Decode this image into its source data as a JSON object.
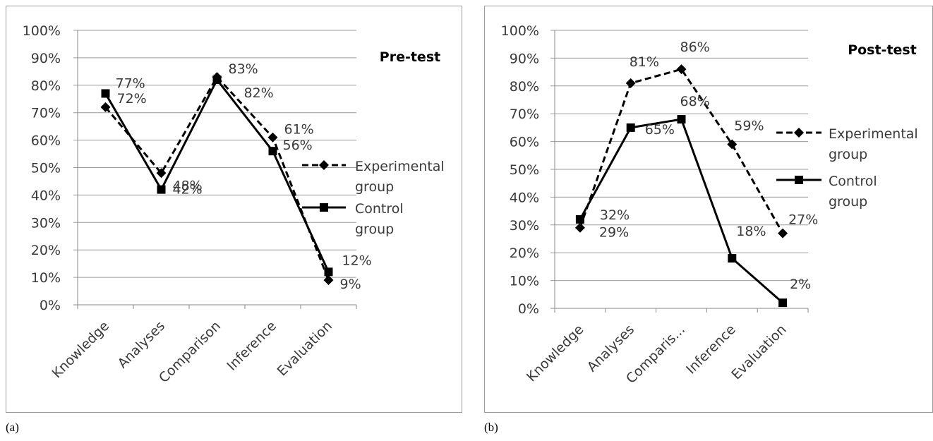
{
  "captions": [
    "(a)",
    "(b)"
  ],
  "chart_data": [
    {
      "type": "line",
      "title": "Pre-test",
      "categories": [
        "Knowledge",
        "Analyses",
        "Comparison",
        "Inference",
        "Evaluation"
      ],
      "y_ticks": [
        "0%",
        "10%",
        "20%",
        "30%",
        "40%",
        "50%",
        "60%",
        "70%",
        "80%",
        "90%",
        "100%"
      ],
      "ylim": [
        0,
        100
      ],
      "grid": true,
      "legend": "right",
      "series": [
        {
          "name_lines": [
            "Experimental",
            "group"
          ],
          "values": [
            72,
            48,
            83,
            61,
            9
          ],
          "labels": [
            "72%",
            "48%",
            "83%",
            "61%",
            "9%"
          ],
          "style": "dashed",
          "marker": "diamond",
          "color": "#000000"
        },
        {
          "name_lines": [
            "Control",
            "group"
          ],
          "values": [
            77,
            42,
            82,
            56,
            12
          ],
          "labels": [
            "77%",
            "42%",
            "82%",
            "56%",
            "12%"
          ],
          "style": "solid",
          "marker": "square",
          "color": "#000000"
        }
      ]
    },
    {
      "type": "line",
      "title": "Post-test",
      "categories": [
        "Knowledge",
        "Analyses",
        "Comparis...",
        "Inference",
        "Evaluation"
      ],
      "y_ticks": [
        "0%",
        "10%",
        "20%",
        "30%",
        "40%",
        "50%",
        "60%",
        "70%",
        "80%",
        "90%",
        "100%"
      ],
      "ylim": [
        0,
        100
      ],
      "grid": true,
      "legend": "right",
      "series": [
        {
          "name_lines": [
            "Experimental",
            "group"
          ],
          "values": [
            29,
            81,
            86,
            59,
            27
          ],
          "labels": [
            "29%",
            "81%",
            "86%",
            "59%",
            "27%"
          ],
          "style": "dashed",
          "marker": "diamond",
          "color": "#000000"
        },
        {
          "name_lines": [
            "Control",
            "group"
          ],
          "values": [
            32,
            65,
            68,
            18,
            2
          ],
          "labels": [
            "32%",
            "65%",
            "68%",
            "18%",
            "2%"
          ],
          "style": "solid",
          "marker": "square",
          "color": "#000000"
        }
      ]
    }
  ]
}
